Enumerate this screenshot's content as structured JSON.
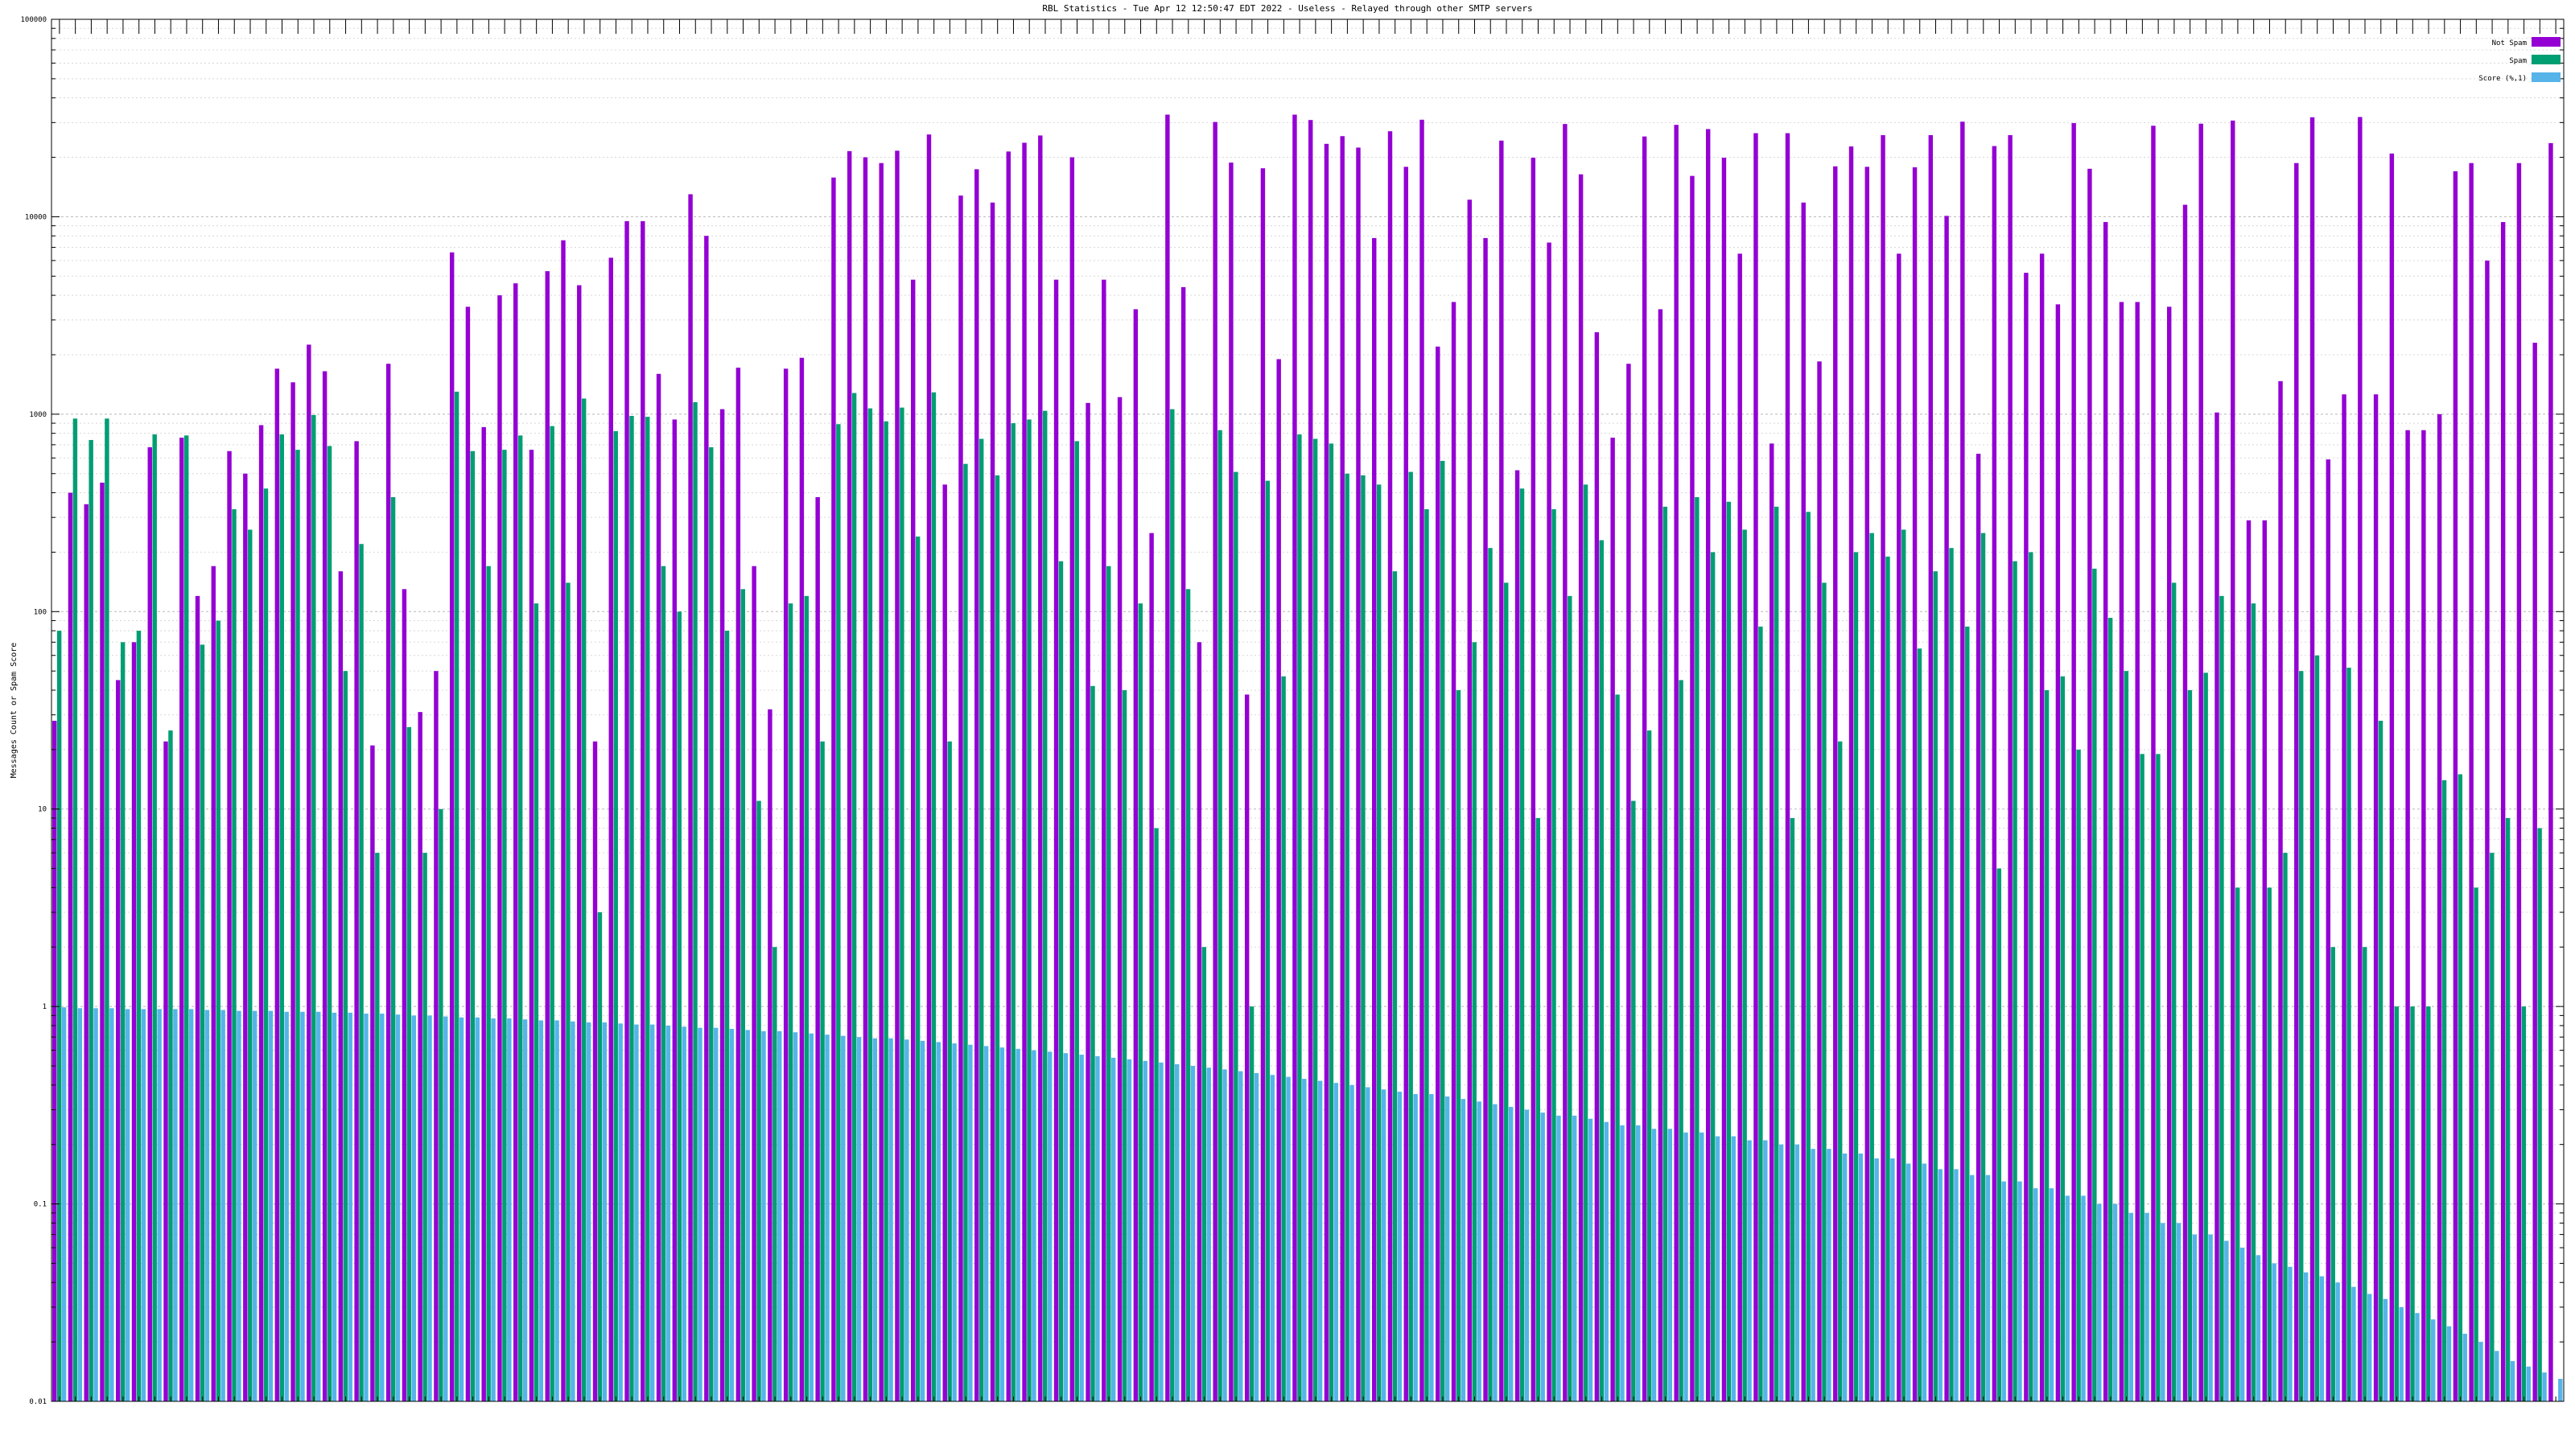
{
  "chart_data": {
    "type": "bar",
    "title": "RBL Statistics - Tue Apr 12 12:50:47 EDT 2022 - Useless - Relayed through other SMTP servers",
    "ylabel": "Messages Count or Spam Score",
    "xlabel": "",
    "yscale": "log",
    "ylim": [
      0.01,
      100000
    ],
    "yticks": [
      {
        "value": 0.01,
        "label": "0.01"
      },
      {
        "value": 0.1,
        "label": "0.1"
      },
      {
        "value": 1,
        "label": "1"
      },
      {
        "value": 10,
        "label": "10"
      },
      {
        "value": 100,
        "label": "100"
      },
      {
        "value": 1000,
        "label": "1000"
      },
      {
        "value": 10000,
        "label": "10000"
      },
      {
        "value": 100000,
        "label": "100000"
      }
    ],
    "grid": true,
    "legend_position": "top-right",
    "series": [
      {
        "name": "Not Spam",
        "color": "#9400d3",
        "values": [
          28,
          400,
          350,
          450,
          45,
          70,
          680,
          22,
          760,
          120,
          170,
          650,
          500,
          880,
          1700,
          1450,
          2250,
          1650,
          160,
          730,
          21,
          1800,
          130,
          31,
          50,
          6600,
          3500,
          860,
          4000,
          4600,
          660,
          5300,
          7600,
          4500,
          22,
          6200,
          9500,
          9500,
          1600,
          940,
          13000,
          8000,
          1060,
          1720,
          170,
          32,
          1700,
          1930,
          380,
          15800,
          21500,
          20000,
          18700,
          21600,
          4800,
          26100,
          440,
          12800,
          17400,
          11800,
          21400,
          23700,
          25800,
          4800,
          20000,
          1140,
          4800,
          1220,
          3400,
          250,
          32900,
          4400,
          70,
          30200,
          18800,
          38,
          17600,
          1900,
          32900,
          30900,
          23400,
          25600,
          22400,
          7800,
          27100,
          17900,
          31000,
          2200,
          3700,
          12200,
          7800,
          24300,
          520,
          19900,
          7400,
          29500,
          16400,
          2600,
          760,
          1800,
          25500,
          3400,
          29200,
          16100,
          27800,
          19900,
          6500,
          26500,
          710,
          26500,
          11800,
          1850,
          18000,
          22700,
          17900,
          25900,
          6500,
          17800,
          25900,
          10100,
          30300,
          630,
          22800,
          25900,
          5200,
          6500,
          3600,
          29800,
          17500,
          9400,
          3700,
          3700,
          28900,
          3500,
          11500,
          29600,
          1020,
          30700,
          290,
          290,
          1470,
          18700,
          31900,
          590,
          1260,
          32000,
          1260,
          20900,
          830,
          830,
          1000,
          17000,
          18700,
          6000,
          9400,
          18700,
          2300,
          23600
        ]
      },
      {
        "name": "Spam",
        "color": "#009e73",
        "values": [
          80,
          950,
          740,
          950,
          70,
          80,
          790,
          25,
          780,
          68,
          90,
          330,
          260,
          420,
          790,
          660,
          990,
          690,
          50,
          220,
          6,
          380,
          26,
          6,
          10,
          1300,
          650,
          170,
          660,
          780,
          110,
          870,
          140,
          1200,
          3,
          820,
          980,
          970,
          170,
          100,
          1150,
          680,
          80,
          130,
          11,
          2,
          110,
          120,
          22,
          890,
          1280,
          1070,
          920,
          1080,
          240,
          1290,
          22,
          560,
          750,
          490,
          900,
          940,
          1040,
          180,
          730,
          42,
          170,
          40,
          110,
          8,
          1060,
          130,
          2,
          830,
          510,
          1,
          460,
          47,
          790,
          750,
          710,
          500,
          490,
          440,
          160,
          510,
          330,
          580,
          40,
          70,
          210,
          140,
          420,
          9,
          330,
          120,
          440,
          230,
          38,
          11,
          25,
          340,
          45,
          380,
          200,
          360,
          260,
          84,
          340,
          9,
          320,
          140,
          22,
          200,
          250,
          190,
          260,
          65,
          160,
          210,
          84,
          250,
          5,
          180,
          200,
          40,
          47,
          20,
          165,
          93,
          50,
          19,
          19,
          140,
          40,
          49,
          120,
          4,
          110,
          4,
          6,
          50,
          60,
          2,
          52,
          2,
          28,
          1,
          1,
          1,
          14,
          15,
          4,
          6,
          9,
          1,
          8
        ]
      },
      {
        "name": "Score (%,1)",
        "color": "#56b4e9",
        "values": [
          0.99,
          0.98,
          0.98,
          0.98,
          0.97,
          0.97,
          0.97,
          0.97,
          0.97,
          0.96,
          0.96,
          0.95,
          0.95,
          0.95,
          0.94,
          0.94,
          0.94,
          0.93,
          0.93,
          0.92,
          0.92,
          0.91,
          0.9,
          0.9,
          0.89,
          0.88,
          0.88,
          0.87,
          0.87,
          0.86,
          0.85,
          0.85,
          0.84,
          0.83,
          0.83,
          0.82,
          0.81,
          0.81,
          0.8,
          0.79,
          0.78,
          0.78,
          0.77,
          0.76,
          0.75,
          0.75,
          0.74,
          0.73,
          0.72,
          0.71,
          0.7,
          0.69,
          0.69,
          0.68,
          0.67,
          0.66,
          0.65,
          0.64,
          0.63,
          0.62,
          0.61,
          0.6,
          0.59,
          0.58,
          0.57,
          0.56,
          0.55,
          0.54,
          0.53,
          0.52,
          0.51,
          0.5,
          0.49,
          0.48,
          0.47,
          0.46,
          0.45,
          0.44,
          0.43,
          0.42,
          0.41,
          0.4,
          0.39,
          0.38,
          0.37,
          0.36,
          0.36,
          0.35,
          0.34,
          0.33,
          0.32,
          0.31,
          0.3,
          0.29,
          0.28,
          0.28,
          0.27,
          0.26,
          0.25,
          0.25,
          0.24,
          0.24,
          0.23,
          0.23,
          0.22,
          0.22,
          0.21,
          0.21,
          0.2,
          0.2,
          0.19,
          0.19,
          0.18,
          0.18,
          0.17,
          0.17,
          0.16,
          0.16,
          0.15,
          0.15,
          0.14,
          0.14,
          0.13,
          0.13,
          0.12,
          0.12,
          0.11,
          0.11,
          0.1,
          0.1,
          0.09,
          0.09,
          0.08,
          0.08,
          0.07,
          0.07,
          0.065,
          0.06,
          0.055,
          0.05,
          0.048,
          0.045,
          0.043,
          0.04,
          0.038,
          0.035,
          0.033,
          0.03,
          0.028,
          0.026,
          0.024,
          0.022,
          0.02,
          0.018,
          0.016,
          0.015,
          0.014,
          0.013
        ]
      }
    ]
  }
}
